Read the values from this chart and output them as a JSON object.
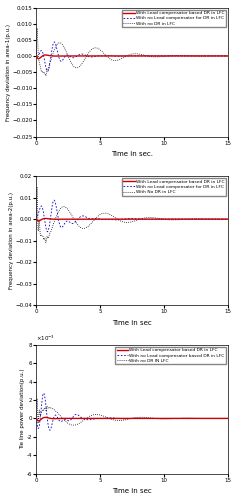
{
  "subplot1": {
    "ylabel": "Frequency deviation in area-1(p.u.)",
    "xlabel": "Time in sec.",
    "ylim": [
      -0.025,
      0.015
    ],
    "yticks": [
      -0.025,
      -0.02,
      -0.015,
      -0.01,
      -0.005,
      0,
      0.005,
      0.01,
      0.015
    ],
    "xlim": [
      0,
      15
    ],
    "legend": [
      "With Lead compensator based DR in LFC",
      "With no Lead compensator for DR in LFC",
      "With no DR in LFC"
    ],
    "line_colors": [
      "#cc0000",
      "#0000cc",
      "#111111"
    ],
    "line_styles": [
      "-",
      ":",
      ":"
    ]
  },
  "subplot2": {
    "ylabel": "Frequency deviation in area-2(p.u.)",
    "xlabel": "Time in sec",
    "ylim": [
      -0.04,
      0.02
    ],
    "yticks": [
      -0.04,
      -0.03,
      -0.02,
      -0.01,
      0,
      0.01,
      0.02
    ],
    "xlim": [
      0,
      15
    ],
    "legend": [
      "With Lead compensator based DR in LFC",
      "With no Lead compensator for DR in LFC",
      "With No DR in LFC"
    ],
    "line_colors": [
      "#cc0000",
      "#0000cc",
      "#111111"
    ],
    "line_styles": [
      "-",
      ":",
      ":"
    ]
  },
  "subplot3": {
    "ylabel": "Tie line power deviation(p.u.)",
    "xlabel": "Time in sec",
    "ylim": [
      -0.006,
      0.008
    ],
    "yticks": [
      -0.006,
      -0.004,
      -0.002,
      0,
      0.002,
      0.004,
      0.006,
      0.008
    ],
    "xlim": [
      0,
      15
    ],
    "legend": [
      "With Lead compensator based DR in LFC",
      "With no Lead compensator based DR in LFC",
      "With no DR IN LFC"
    ],
    "line_colors": [
      "#cc0000",
      "#0000cc",
      "#111111"
    ],
    "line_styles": [
      "-",
      ":",
      ":"
    ]
  }
}
